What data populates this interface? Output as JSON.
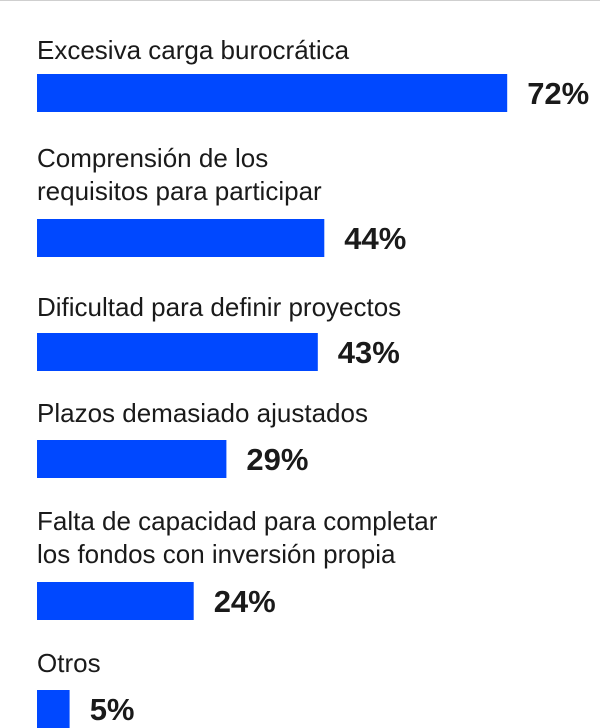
{
  "chart_data": {
    "type": "bar",
    "orientation": "horizontal",
    "title": "",
    "xlabel": "",
    "ylabel": "",
    "xlim": [
      0,
      100
    ],
    "grid": false,
    "legend": "none",
    "bar_color": "#0048ff",
    "categories": [
      "Excesiva carga burocrática",
      "Comprensión de los requisitos para participar",
      "Dificultad para definir proyectos",
      "Plazos demasiado ajustados",
      "Falta de capacidad para completar los fondos con inversión propia",
      "Otros"
    ],
    "category_lines": [
      [
        "Excesiva carga burocrática"
      ],
      [
        "Comprensión de los",
        "requisitos para participar"
      ],
      [
        "Dificultad para definir proyectos"
      ],
      [
        "Plazos demasiado ajustados"
      ],
      [
        "Falta de capacidad para completar",
        "los fondos con inversión propia"
      ],
      [
        "Otros"
      ]
    ],
    "values": [
      72,
      44,
      43,
      29,
      24,
      5
    ],
    "value_labels": [
      "72%",
      "44%",
      "43%",
      "29%",
      "24%",
      "5%"
    ]
  }
}
